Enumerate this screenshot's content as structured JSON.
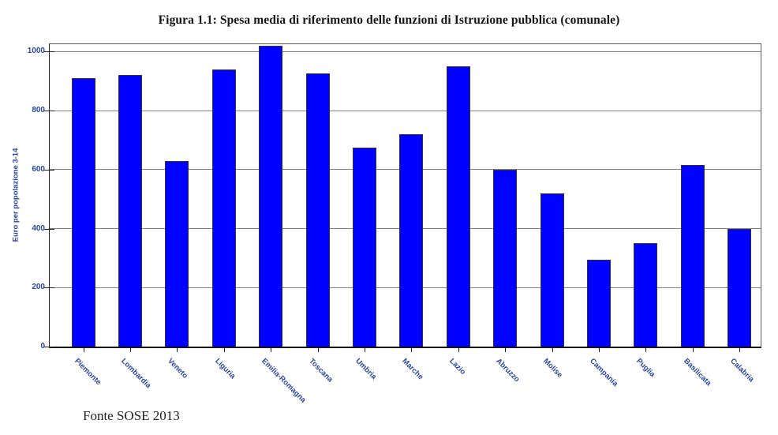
{
  "page": {
    "background": "#ffffff"
  },
  "chart_data": {
    "type": "bar",
    "title": "Figura 1.1: Spesa media di riferimento delle funzioni di Istruzione pubblica (comunale)",
    "ylabel": "Euro per popolazione 3-14",
    "xlabel": "",
    "source_note": "Fonte SOSE 2013",
    "categories": [
      "Piemonte",
      "Lombardia",
      "Veneto",
      "Liguria",
      "Emilia-Romagna",
      "Toscana",
      "Umbria",
      "Marche",
      "Lazio",
      "Abruzzo",
      "Molise",
      "Campania",
      "Puglia",
      "Basilicata",
      "Calabria"
    ],
    "values": [
      910,
      920,
      630,
      940,
      1020,
      925,
      675,
      720,
      950,
      600,
      520,
      295,
      350,
      615,
      400
    ],
    "ylim": [
      0,
      1025
    ],
    "yticks": [
      0,
      200,
      400,
      600,
      800,
      1000
    ],
    "grid": "horizontal",
    "legend_position": "none",
    "colors": {
      "bar": "#0000ff",
      "bar_border": "#333333",
      "axis_text": "#27459c",
      "gridline": "#808080",
      "title_text": "#151515",
      "source_text": "#222222"
    }
  }
}
